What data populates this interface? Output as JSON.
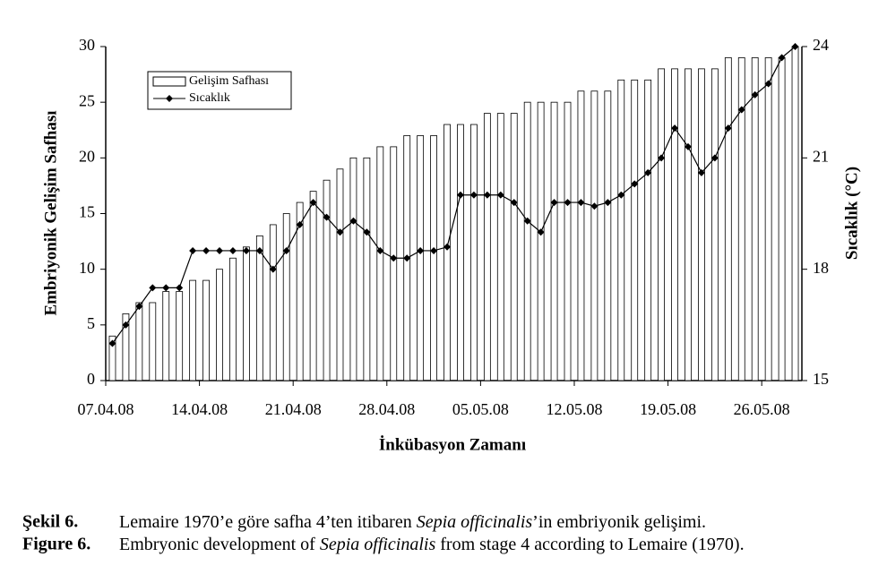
{
  "chart_data": {
    "type": "bar",
    "y_label": "Embriyonik Gelişim Safhası",
    "y2_label": "Sıcaklık (°C)",
    "x_label": "İnkübasyon Zamanı",
    "categories": [
      "07.04.08",
      null,
      null,
      null,
      null,
      null,
      null,
      "14.04.08",
      null,
      null,
      null,
      null,
      null,
      null,
      "21.04.08",
      null,
      null,
      null,
      null,
      null,
      null,
      "28.04.08",
      null,
      null,
      null,
      null,
      null,
      null,
      "05.05.08",
      null,
      null,
      null,
      null,
      null,
      null,
      "12.05.08",
      null,
      null,
      null,
      null,
      null,
      null,
      "19.05.08",
      null,
      null,
      null,
      null,
      null,
      null,
      "26.05.08",
      null,
      null
    ],
    "series": [
      {
        "name": "Gelişim Safhası",
        "type": "bar",
        "color": "#ffffff",
        "values": [
          4,
          6,
          7,
          7,
          8,
          8,
          9,
          9,
          10,
          11,
          12,
          13,
          14,
          15,
          16,
          17,
          18,
          19,
          20,
          20,
          21,
          21,
          22,
          22,
          22,
          23,
          23,
          23,
          24,
          24,
          24,
          25,
          25,
          25,
          25,
          26,
          26,
          26,
          27,
          27,
          27,
          28,
          28,
          28,
          28,
          28,
          29,
          29,
          29,
          29,
          29,
          30
        ]
      },
      {
        "name": "Sıcaklık",
        "type": "line",
        "axis": "y2",
        "color": "#000000",
        "values": [
          16.0,
          16.5,
          17.0,
          17.5,
          17.5,
          17.5,
          18.5,
          18.5,
          18.5,
          18.5,
          18.5,
          18.5,
          18.0,
          18.5,
          19.2,
          19.8,
          19.4,
          19.0,
          19.3,
          19.0,
          18.5,
          18.3,
          18.3,
          18.5,
          18.5,
          18.6,
          20.0,
          20.0,
          20.0,
          20.0,
          19.8,
          19.3,
          19.0,
          19.8,
          19.8,
          19.8,
          19.7,
          19.8,
          20.0,
          20.3,
          20.6,
          21.0,
          21.8,
          21.3,
          20.6,
          21.0,
          21.8,
          22.3,
          22.7,
          23.0,
          23.7,
          24.0
        ]
      }
    ],
    "ylim": [
      0,
      30
    ],
    "yticks": [
      0,
      5,
      10,
      15,
      20,
      25,
      30
    ],
    "y2lim": [
      15,
      24
    ],
    "y2ticks": [
      15,
      18,
      21,
      24
    ],
    "legend": "top-left",
    "grid": false
  },
  "caption": [
    {
      "label": "Şekil 6.",
      "parts": [
        "Lemaire 1970’e göre safha 4’ten itibaren ",
        "Sepia officinalis",
        "’in embriyonik gelişimi."
      ]
    },
    {
      "label": "Figure 6.",
      "parts": [
        "Embryonic development of ",
        "Sepia officinalis",
        " from stage 4 according to Lemaire (1970)."
      ]
    }
  ]
}
